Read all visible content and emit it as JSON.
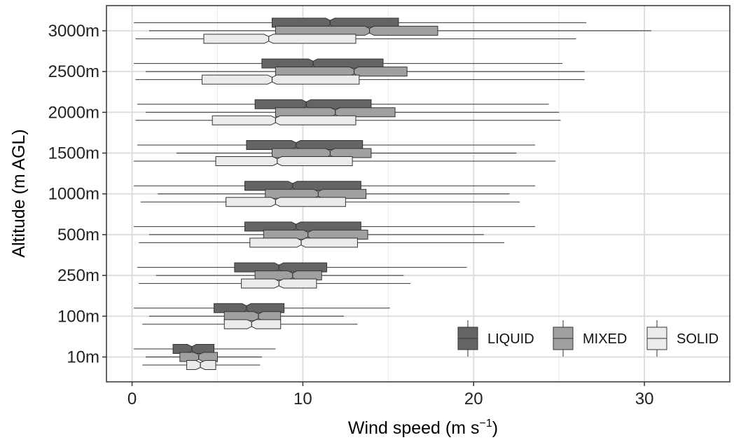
{
  "chart_data": {
    "type": "boxplot",
    "orientation": "horizontal",
    "notched": true,
    "xlabel": "Wind speed (m s",
    "xlabel_superscript": "−1",
    "xlabel_suffix": ")",
    "ylabel": "Altitude (m AGL)",
    "xlim": [
      -1.5,
      35
    ],
    "x_ticks": [
      0,
      10,
      20,
      30
    ],
    "x_tick_labels": [
      "0",
      "10",
      "20",
      "30"
    ],
    "grid": true,
    "legend_position": "bottom-right",
    "categories": [
      "10m",
      "100m",
      "250m",
      "500m",
      "1000m",
      "1500m",
      "2000m",
      "2500m",
      "3000m"
    ],
    "series": [
      {
        "name": "LIQUID",
        "color": "#646464",
        "boxes": [
          {
            "min": 0.1,
            "q1": 2.4,
            "median": 3.5,
            "q3": 4.8,
            "max": 8.4
          },
          {
            "min": 0.1,
            "q1": 4.8,
            "median": 6.7,
            "q3": 8.9,
            "max": 15.1
          },
          {
            "min": 0.3,
            "q1": 6.0,
            "median": 8.6,
            "q3": 11.4,
            "max": 19.6
          },
          {
            "min": 0.1,
            "q1": 6.6,
            "median": 9.6,
            "q3": 13.4,
            "max": 23.6
          },
          {
            "min": 0.1,
            "q1": 6.6,
            "median": 9.4,
            "q3": 13.4,
            "max": 23.6
          },
          {
            "min": 0.3,
            "q1": 6.7,
            "median": 9.6,
            "q3": 13.5,
            "max": 23.6
          },
          {
            "min": 0.3,
            "q1": 7.2,
            "median": 10.2,
            "q3": 14.0,
            "max": 24.4
          },
          {
            "min": 0.1,
            "q1": 7.6,
            "median": 10.6,
            "q3": 14.7,
            "max": 25.2
          },
          {
            "min": 0.1,
            "q1": 8.2,
            "median": 11.6,
            "q3": 15.6,
            "max": 26.6
          }
        ]
      },
      {
        "name": "MIXED",
        "color": "#a0a0a0",
        "boxes": [
          {
            "min": 0.8,
            "q1": 2.8,
            "median": 3.9,
            "q3": 5.0,
            "max": 7.6
          },
          {
            "min": 1.0,
            "q1": 5.4,
            "median": 7.4,
            "q3": 8.7,
            "max": 12.4
          },
          {
            "min": 1.4,
            "q1": 7.2,
            "median": 9.4,
            "q3": 11.1,
            "max": 15.9
          },
          {
            "min": 1.0,
            "q1": 7.7,
            "median": 10.3,
            "q3": 13.8,
            "max": 20.6
          },
          {
            "min": 1.5,
            "q1": 7.8,
            "median": 10.9,
            "q3": 13.7,
            "max": 22.1
          },
          {
            "min": 2.6,
            "q1": 8.2,
            "median": 11.6,
            "q3": 14.0,
            "max": 22.5
          },
          {
            "min": 0.8,
            "q1": 8.4,
            "median": 11.9,
            "q3": 15.4,
            "max": 25.0
          },
          {
            "min": 0.8,
            "q1": 8.4,
            "median": 13.0,
            "q3": 16.1,
            "max": 26.5
          },
          {
            "min": 1.0,
            "q1": 8.4,
            "median": 13.9,
            "q3": 17.9,
            "max": 30.4
          }
        ]
      },
      {
        "name": "SOLID",
        "color": "#ebebeb",
        "boxes": [
          {
            "min": 0.6,
            "q1": 3.2,
            "median": 4.0,
            "q3": 4.9,
            "max": 7.5
          },
          {
            "min": 0.6,
            "q1": 5.4,
            "median": 7.0,
            "q3": 8.7,
            "max": 13.2
          },
          {
            "min": 0.4,
            "q1": 6.4,
            "median": 8.6,
            "q3": 10.8,
            "max": 16.3
          },
          {
            "min": 0.4,
            "q1": 6.9,
            "median": 9.9,
            "q3": 13.2,
            "max": 21.8
          },
          {
            "min": 0.5,
            "q1": 5.5,
            "median": 8.4,
            "q3": 12.5,
            "max": 22.7
          },
          {
            "min": 0.1,
            "q1": 4.9,
            "median": 8.5,
            "q3": 12.9,
            "max": 24.8
          },
          {
            "min": 0.2,
            "q1": 4.7,
            "median": 8.4,
            "q3": 13.1,
            "max": 25.1
          },
          {
            "min": 0.2,
            "q1": 4.1,
            "median": 8.2,
            "q3": 13.3,
            "max": 26.5
          },
          {
            "min": 0.2,
            "q1": 4.2,
            "median": 8.0,
            "q3": 13.1,
            "max": 26.0
          }
        ]
      }
    ]
  }
}
